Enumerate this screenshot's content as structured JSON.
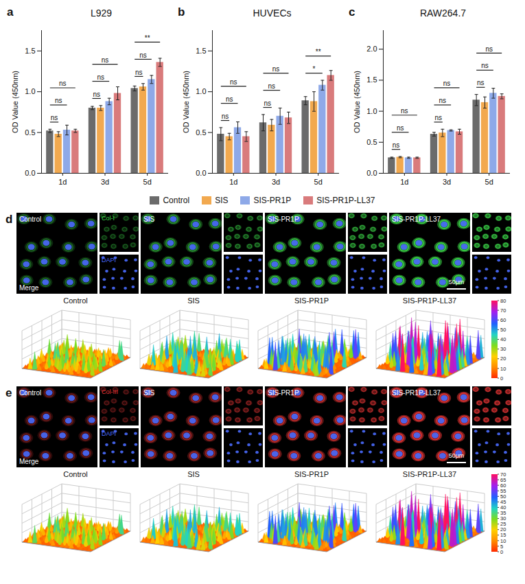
{
  "chart_data": [
    {
      "type": "bar",
      "panel": "a",
      "title": "L929",
      "y_label": "OD Value (450nm)",
      "categories": [
        "1d",
        "3d",
        "5d"
      ],
      "ylim": [
        0,
        1.75
      ],
      "yticks": [
        {
          "value": 0,
          "label": "0.0"
        },
        {
          "value": 0.5,
          "label": "0.5"
        },
        {
          "value": 1,
          "label": "1.0"
        },
        {
          "value": 1.5,
          "label": "1.5"
        }
      ],
      "legend": "bottom",
      "series": [
        {
          "name": "Control",
          "color": "#6b6b6b",
          "values": [
            0.52,
            0.8,
            1.04
          ],
          "errors": [
            0.02,
            0.02,
            0.03
          ]
        },
        {
          "name": "SIS",
          "color": "#f2a94f",
          "values": [
            0.48,
            0.8,
            1.06
          ],
          "errors": [
            0.03,
            0.03,
            0.04
          ]
        },
        {
          "name": "SIS-PR1P",
          "color": "#8ea9e8",
          "values": [
            0.53,
            0.88,
            1.15
          ],
          "errors": [
            0.06,
            0.04,
            0.05
          ]
        },
        {
          "name": "SIS-PR1P-LL37",
          "color": "#d97b7c",
          "values": [
            0.52,
            0.98,
            1.36
          ],
          "errors": [
            0.02,
            0.08,
            0.05
          ]
        }
      ],
      "comparisons": [
        {
          "category": "1d",
          "groups": [
            "Control",
            "SIS"
          ],
          "label": "ns"
        },
        {
          "category": "1d",
          "groups": [
            "Control",
            "SIS-PR1P"
          ],
          "label": "ns"
        },
        {
          "category": "1d",
          "groups": [
            "Control",
            "SIS-PR1P-LL37"
          ],
          "label": "ns"
        },
        {
          "category": "3d",
          "groups": [
            "Control",
            "SIS"
          ],
          "label": "ns"
        },
        {
          "category": "3d",
          "groups": [
            "Control",
            "SIS-PR1P"
          ],
          "label": "ns"
        },
        {
          "category": "3d",
          "groups": [
            "Control",
            "SIS-PR1P-LL37"
          ],
          "label": "ns"
        },
        {
          "category": "5d",
          "groups": [
            "Control",
            "SIS"
          ],
          "label": "ns"
        },
        {
          "category": "5d",
          "groups": [
            "Control",
            "SIS-PR1P"
          ],
          "label": "ns"
        },
        {
          "category": "5d",
          "groups": [
            "Control",
            "SIS-PR1P-LL37"
          ],
          "label": "**"
        }
      ]
    },
    {
      "type": "bar",
      "panel": "b",
      "title": "HUVECs",
      "y_label": "OD Value (450nm)",
      "categories": [
        "1d",
        "3d",
        "5d"
      ],
      "ylim": [
        0,
        1.75
      ],
      "yticks": [
        {
          "value": 0,
          "label": "0.0"
        },
        {
          "value": 0.5,
          "label": "0.5"
        },
        {
          "value": 1,
          "label": "1.0"
        },
        {
          "value": 1.5,
          "label": "1.5"
        }
      ],
      "legend": "bottom",
      "series": [
        {
          "name": "Control",
          "color": "#6b6b6b",
          "values": [
            0.48,
            0.62,
            0.89
          ],
          "errors": [
            0.08,
            0.1,
            0.05
          ]
        },
        {
          "name": "SIS",
          "color": "#f2a94f",
          "values": [
            0.45,
            0.59,
            0.88
          ],
          "errors": [
            0.04,
            0.07,
            0.12
          ]
        },
        {
          "name": "SIS-PR1P",
          "color": "#8ea9e8",
          "values": [
            0.56,
            0.7,
            1.08
          ],
          "errors": [
            0.07,
            0.1,
            0.06
          ]
        },
        {
          "name": "SIS-PR1P-LL37",
          "color": "#d97b7c",
          "values": [
            0.45,
            0.68,
            1.2
          ],
          "errors": [
            0.06,
            0.07,
            0.06
          ]
        }
      ],
      "comparisons": [
        {
          "category": "1d",
          "groups": [
            "Control",
            "SIS"
          ],
          "label": "ns"
        },
        {
          "category": "1d",
          "groups": [
            "Control",
            "SIS-PR1P"
          ],
          "label": "ns"
        },
        {
          "category": "1d",
          "groups": [
            "Control",
            "SIS-PR1P-LL37"
          ],
          "label": "ns"
        },
        {
          "category": "3d",
          "groups": [
            "Control",
            "SIS"
          ],
          "label": "ns"
        },
        {
          "category": "3d",
          "groups": [
            "Control",
            "SIS-PR1P"
          ],
          "label": "ns"
        },
        {
          "category": "3d",
          "groups": [
            "Control",
            "SIS-PR1P-LL37"
          ],
          "label": "ns"
        },
        {
          "category": "5d",
          "groups": [
            "Control",
            "SIS-PR1P"
          ],
          "label": "*"
        },
        {
          "category": "5d",
          "groups": [
            "Control",
            "SIS-PR1P-LL37"
          ],
          "label": "**"
        }
      ]
    },
    {
      "type": "bar",
      "panel": "c",
      "title": "RAW264.7",
      "y_label": "OD Value (450nm)",
      "categories": [
        "1d",
        "3d",
        "5d"
      ],
      "ylim": [
        0,
        2.3
      ],
      "yticks": [
        {
          "value": 0,
          "label": "0.0"
        },
        {
          "value": 0.5,
          "label": "0.5"
        },
        {
          "value": 1,
          "label": "1.0"
        },
        {
          "value": 1.5,
          "label": "1.5"
        },
        {
          "value": 2,
          "label": "2.0"
        }
      ],
      "legend": "bottom",
      "series": [
        {
          "name": "Control",
          "color": "#6b6b6b",
          "values": [
            0.25,
            0.63,
            1.18
          ],
          "errors": [
            0.01,
            0.03,
            0.09
          ]
        },
        {
          "name": "SIS",
          "color": "#f2a94f",
          "values": [
            0.26,
            0.65,
            1.14
          ],
          "errors": [
            0.01,
            0.06,
            0.09
          ]
        },
        {
          "name": "SIS-PR1P",
          "color": "#8ea9e8",
          "values": [
            0.25,
            0.69,
            1.29
          ],
          "errors": [
            0.01,
            0.01,
            0.08
          ]
        },
        {
          "name": "SIS-PR1P-LL37",
          "color": "#d97b7c",
          "values": [
            0.25,
            0.67,
            1.24
          ],
          "errors": [
            0.01,
            0.04,
            0.04
          ]
        }
      ],
      "comparisons": [
        {
          "category": "1d",
          "groups": [
            "Control",
            "SIS"
          ],
          "label": "ns"
        },
        {
          "category": "1d",
          "groups": [
            "Control",
            "SIS-PR1P"
          ],
          "label": "ns"
        },
        {
          "category": "1d",
          "groups": [
            "Control",
            "SIS-PR1P-LL37"
          ],
          "label": "ns"
        },
        {
          "category": "3d",
          "groups": [
            "Control",
            "SIS"
          ],
          "label": "ns"
        },
        {
          "category": "3d",
          "groups": [
            "Control",
            "SIS-PR1P"
          ],
          "label": "ns"
        },
        {
          "category": "3d",
          "groups": [
            "Control",
            "SIS-PR1P-LL37"
          ],
          "label": "ns"
        },
        {
          "category": "5d",
          "groups": [
            "Control",
            "SIS"
          ],
          "label": "ns"
        },
        {
          "category": "5d",
          "groups": [
            "Control",
            "SIS-PR1P"
          ],
          "label": "ns"
        },
        {
          "category": "5d",
          "groups": [
            "Control",
            "SIS-PR1P-LL37"
          ],
          "label": "ns"
        }
      ]
    }
  ],
  "image_panels": [
    {
      "panel": "d",
      "groups": [
        "Control",
        "SIS",
        "SIS-PR1P",
        "SIS-PR1P-LL37"
      ],
      "merge": "Merge",
      "stain": "Col-I",
      "stain_color": "#3ddc4a",
      "nucleus": "DAPI",
      "nucleus_color": "#4a6bff",
      "scale_bar": "50μm",
      "colorbar": {
        "range": [
          0,
          80
        ],
        "ticks": [
          0,
          10,
          20,
          30,
          40,
          50,
          60,
          70,
          80
        ]
      }
    },
    {
      "panel": "e",
      "groups": [
        "Control",
        "SIS",
        "SIS-PR1P",
        "SIS-PR1P-LL37"
      ],
      "merge": "Merge",
      "stain": "Col-III",
      "stain_color": "#e83535",
      "nucleus": "DAPI",
      "nucleus_color": "#4a6bff",
      "scale_bar": "50μm",
      "colorbar": {
        "range": [
          0,
          70
        ],
        "ticks": [
          0,
          5,
          10,
          15,
          20,
          25,
          30,
          35,
          40,
          45,
          50,
          55,
          60,
          65,
          70
        ]
      }
    }
  ]
}
